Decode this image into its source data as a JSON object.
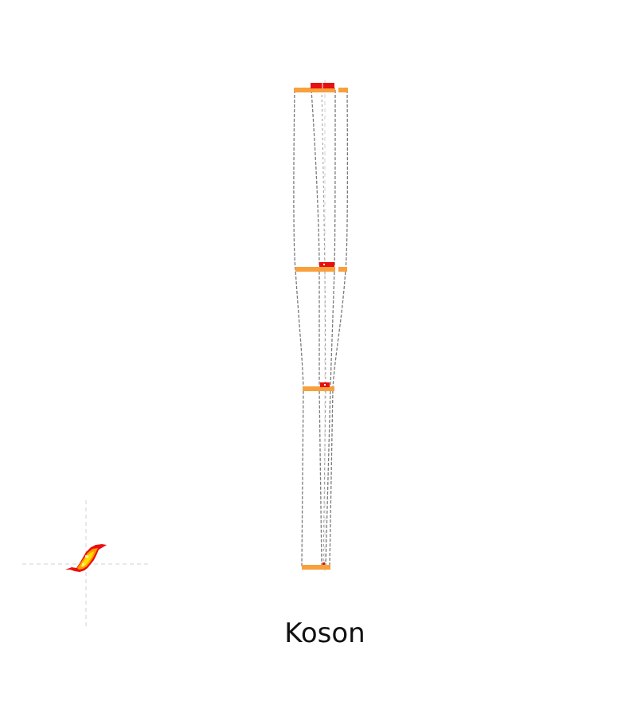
{
  "title": "Koson",
  "colors": {
    "background": "#ffffff",
    "layer_bar": "#f7a03c",
    "marker": "#e81010",
    "outline": "#7a7a7a",
    "centerline": "#c8c8c8",
    "blob_hot": "#ffe000",
    "blob_warm": "#ff9a00",
    "blob_edge": "#e81010"
  }
}
